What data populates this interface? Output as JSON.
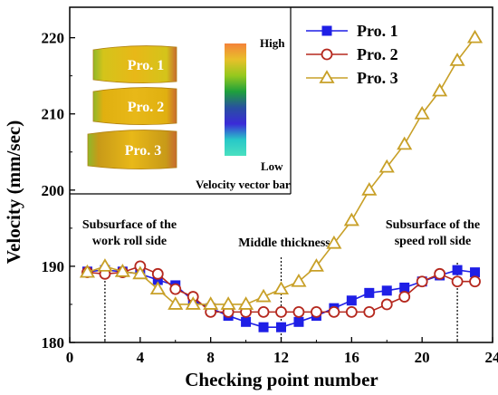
{
  "chart_data": {
    "type": "line",
    "xlabel": "Checking point number",
    "ylabel": "Velocity (mm/sec)",
    "xlim": [
      0,
      24
    ],
    "ylim": [
      180,
      224
    ],
    "xticks": [
      0,
      4,
      8,
      12,
      16,
      20,
      24
    ],
    "yticks": [
      180,
      190,
      200,
      210,
      220
    ],
    "grid": false,
    "legend_position": "top-right",
    "series": [
      {
        "name": "Pro. 1",
        "color": "#1f1fe6",
        "marker": "square-filled",
        "x": [
          1,
          2,
          3,
          4,
          5,
          6,
          7,
          8,
          9,
          10,
          11,
          12,
          13,
          14,
          15,
          16,
          17,
          18,
          19,
          20,
          21,
          22,
          23
        ],
        "y": [
          189.3,
          189.5,
          189.3,
          189.0,
          188.2,
          187.5,
          185.5,
          184.5,
          183.5,
          182.7,
          182.0,
          182.0,
          182.7,
          183.5,
          184.5,
          185.5,
          186.5,
          186.8,
          187.2,
          188.0,
          188.8,
          189.5,
          189.2
        ]
      },
      {
        "name": "Pro. 2",
        "color": "#b5281e",
        "marker": "circle-open",
        "x": [
          1,
          2,
          3,
          4,
          5,
          6,
          7,
          8,
          9,
          10,
          11,
          12,
          13,
          14,
          15,
          16,
          17,
          18,
          19,
          20,
          21,
          22,
          23
        ],
        "y": [
          189.2,
          189.0,
          189.2,
          190.0,
          189.0,
          187.0,
          186.0,
          184.0,
          184.0,
          184.0,
          184.0,
          184.0,
          184.0,
          184.0,
          184.0,
          184.0,
          184.0,
          185.0,
          186.0,
          188.0,
          189.0,
          188.0,
          188.0
        ]
      },
      {
        "name": "Pro. 3",
        "color": "#c8a028",
        "marker": "triangle-open",
        "x": [
          1,
          2,
          3,
          4,
          5,
          6,
          7,
          8,
          9,
          10,
          11,
          12,
          13,
          14,
          15,
          16,
          17,
          18,
          19,
          20,
          21,
          22,
          23
        ],
        "y": [
          189.2,
          190.0,
          189.3,
          189.0,
          187.0,
          185.0,
          185.0,
          185.0,
          185.0,
          185.0,
          186.0,
          187.0,
          188.0,
          190.0,
          193.0,
          196.0,
          200.0,
          203.0,
          206.0,
          210.0,
          213.0,
          217.0,
          220.0
        ]
      }
    ],
    "reference_lines": [
      {
        "x": 2,
        "label": "Subsurface of the work roll side",
        "lines": [
          "Subsurface of the",
          "work roll side"
        ]
      },
      {
        "x": 12,
        "label": "Middle thickness",
        "lines": [
          "Middle thickness"
        ]
      },
      {
        "x": 22,
        "label": "Subsurface of the speed roll side",
        "lines": [
          "Subsurface of the",
          "speed roll side"
        ]
      }
    ],
    "inset": {
      "slab_labels": [
        "Pro. 1",
        "Pro. 2",
        "Pro. 3"
      ],
      "colorbar_high": "High",
      "colorbar_low": "Low",
      "colorbar_title": "Velocity vector bar",
      "colorbar_colors": [
        "#f4833a",
        "#e8c02a",
        "#96c81e",
        "#1ea03c",
        "#2850a0",
        "#3a2ad8",
        "#28c8c8",
        "#4ae0c0"
      ],
      "slab_colors": [
        "#d4c41a",
        "#e0b010",
        "#c89a18"
      ]
    }
  }
}
